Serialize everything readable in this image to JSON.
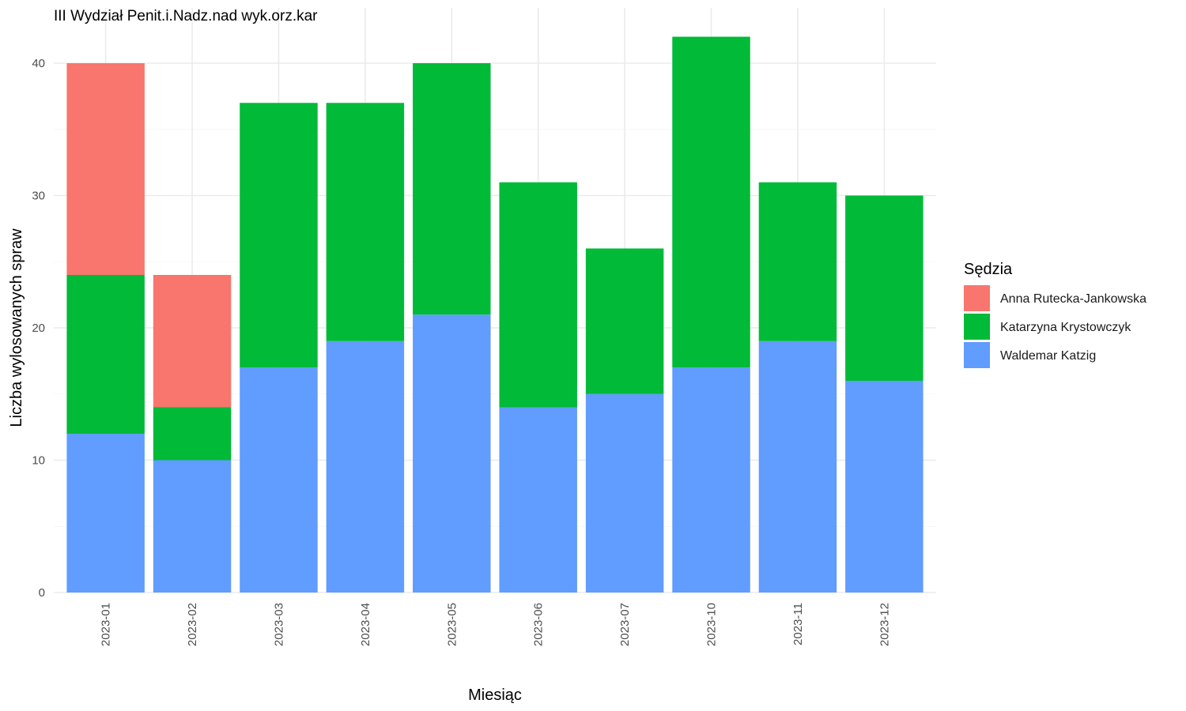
{
  "chart_data": {
    "type": "bar",
    "stacked": true,
    "title": "III Wydział Penit.i.Nadz.nad wyk.orz.kar",
    "xlabel": "Miesiąc",
    "ylabel": "Liczba wylosowanych spraw",
    "ylim": [
      0,
      43
    ],
    "yticks": [
      0,
      10,
      20,
      30,
      40
    ],
    "grid": true,
    "legend": {
      "title": "Sędzia",
      "position": "right"
    },
    "categories": [
      "2023-01",
      "2023-02",
      "2023-03",
      "2023-04",
      "2023-05",
      "2023-06",
      "2023-07",
      "2023-10",
      "2023-11",
      "2023-12"
    ],
    "series": [
      {
        "name": "Anna Rutecka-Jankowska",
        "color": "#F8766D",
        "values": [
          16,
          10,
          0,
          0,
          0,
          0,
          0,
          0,
          0,
          0
        ]
      },
      {
        "name": "Katarzyna Krystowczyk",
        "color": "#00BA38",
        "values": [
          12,
          4,
          20,
          18,
          19,
          17,
          11,
          25,
          12,
          14
        ]
      },
      {
        "name": "Waldemar Katzig",
        "color": "#619CFF",
        "values": [
          12,
          10,
          17,
          19,
          21,
          14,
          15,
          17,
          19,
          16
        ]
      }
    ],
    "stack_order_bottom_to_top": [
      "Waldemar Katzig",
      "Katarzyna Krystowczyk",
      "Anna Rutecka-Jankowska"
    ]
  }
}
